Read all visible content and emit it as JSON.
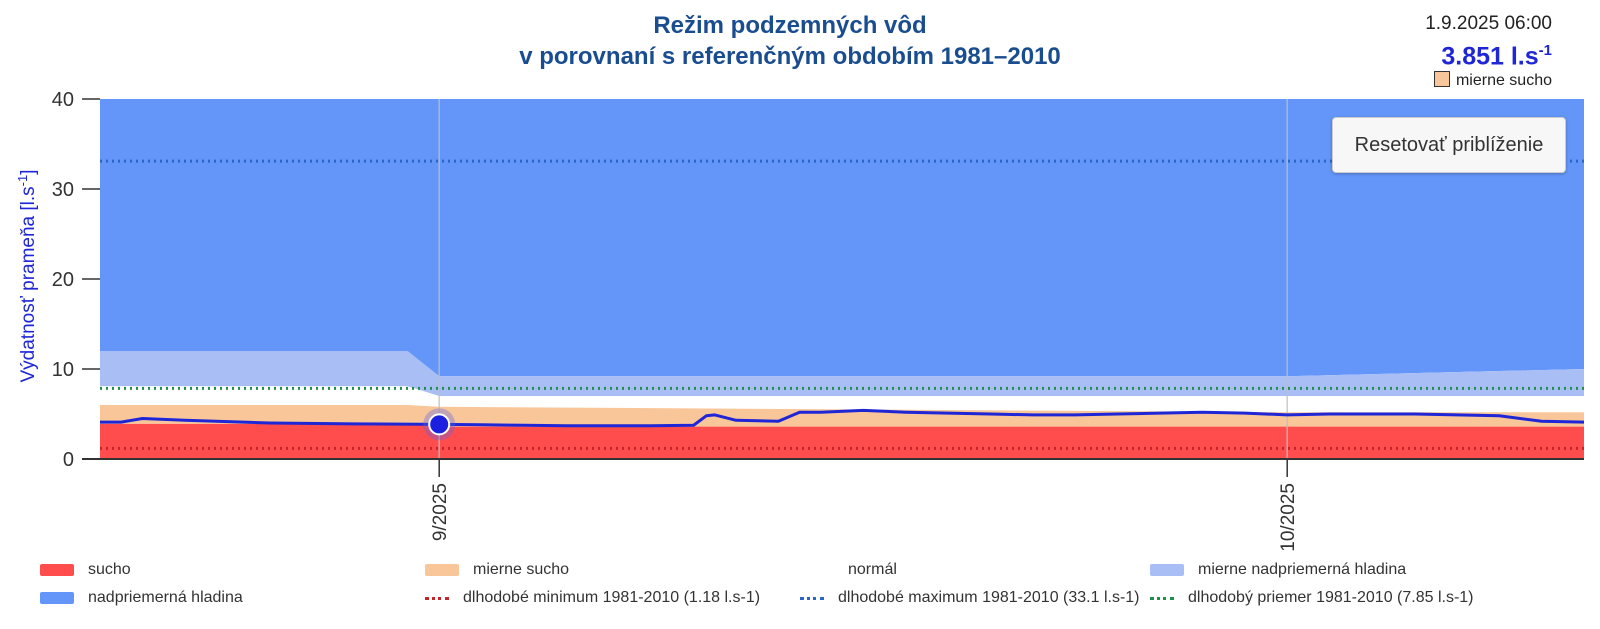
{
  "header": {
    "title_line1": "Režim podzemných vôd",
    "title_line2": "v porovnaní s referenčným obdobím 1981–2010"
  },
  "info": {
    "datetime": "1.9.2025 06:00",
    "value": "3.851 l.s",
    "value_sup": "-1",
    "status_label": "mierne sucho",
    "status_color": "#f9c69a"
  },
  "reset_button": "Resetovať priblíženie",
  "colors": {
    "sucho": "#ff4c4c",
    "mierne_sucho": "#f9c69a",
    "mierne_nadpriemerna": "#a9bef5",
    "nadpriemerna": "#6496fa",
    "line": "#1f26d6",
    "min": "#c0262c",
    "max": "#2a66c4",
    "mean": "#1f8f4e"
  },
  "chart_data": {
    "type": "area",
    "ylabel": "Výdatnosť prameňa [l.s",
    "ylabel_sup": "-1",
    "ylabel_end": "]",
    "ylim": [
      0,
      40
    ],
    "yticks": [
      0,
      10,
      20,
      30,
      40
    ],
    "xlim": [
      -16,
      54
    ],
    "xticks": [
      {
        "day": 0,
        "label": "9/2025"
      },
      {
        "day": 40,
        "label": "10/2025"
      }
    ],
    "bands": {
      "days": [
        -16,
        -1.5,
        0,
        40,
        54
      ],
      "sucho_top": [
        3.9,
        3.9,
        3.6,
        3.6,
        3.6
      ],
      "mierne_sucho_top": [
        6.0,
        6.0,
        5.8,
        5.2,
        5.2
      ],
      "normal_top": [
        8.1,
        8.1,
        7.0,
        7.0,
        7.0
      ],
      "mierne_nad_top": [
        12.0,
        12.0,
        9.2,
        9.2,
        10.0
      ],
      "nad_top": [
        40,
        40,
        40,
        40,
        40
      ]
    },
    "series": [
      {
        "name": "výdatnosť",
        "x": [
          -16,
          -15,
          -14,
          -12,
          -8,
          -4,
          0,
          2,
          4,
          6,
          8,
          10,
          12,
          12.6,
          13,
          14,
          16,
          17,
          18,
          20,
          22,
          24,
          26,
          28,
          30,
          32,
          34,
          36,
          38,
          40,
          42,
          44,
          46,
          48,
          50,
          52,
          54
        ],
        "y": [
          4.1,
          4.1,
          4.5,
          4.3,
          4.0,
          3.9,
          3.85,
          3.8,
          3.75,
          3.7,
          3.7,
          3.7,
          3.75,
          4.8,
          4.9,
          4.3,
          4.2,
          5.2,
          5.2,
          5.4,
          5.2,
          5.1,
          5.0,
          4.9,
          4.9,
          5.0,
          5.1,
          5.2,
          5.1,
          4.9,
          5.0,
          5.0,
          5.0,
          4.9,
          4.8,
          4.2,
          4.1
        ]
      }
    ],
    "highlight": {
      "day": 0,
      "value": 3.851
    },
    "reference_lines": {
      "min": 1.18,
      "max": 33.1,
      "mean": 7.85
    },
    "legend": [
      {
        "key": "sucho",
        "label": "sucho",
        "kind": "area"
      },
      {
        "key": "mierne_sucho",
        "label": "mierne sucho",
        "kind": "area"
      },
      {
        "key": "normal",
        "label": "normál",
        "kind": "none"
      },
      {
        "key": "mierne_nadpriemerna",
        "label": "mierne nadpriemerná hladina",
        "kind": "area"
      },
      {
        "key": "nadpriemerna",
        "label": "nadpriemerná hladina",
        "kind": "area"
      },
      {
        "key": "min",
        "label": "dlhodobé minimum 1981-2010 (1.18 l.s-1)",
        "kind": "dotted"
      },
      {
        "key": "max",
        "label": "dlhodobé maximum 1981-2010 (33.1 l.s-1)",
        "kind": "dotted"
      },
      {
        "key": "mean",
        "label": "dlhodobý priemer 1981-2010 (7.85 l.s-1)",
        "kind": "dotted"
      }
    ]
  }
}
